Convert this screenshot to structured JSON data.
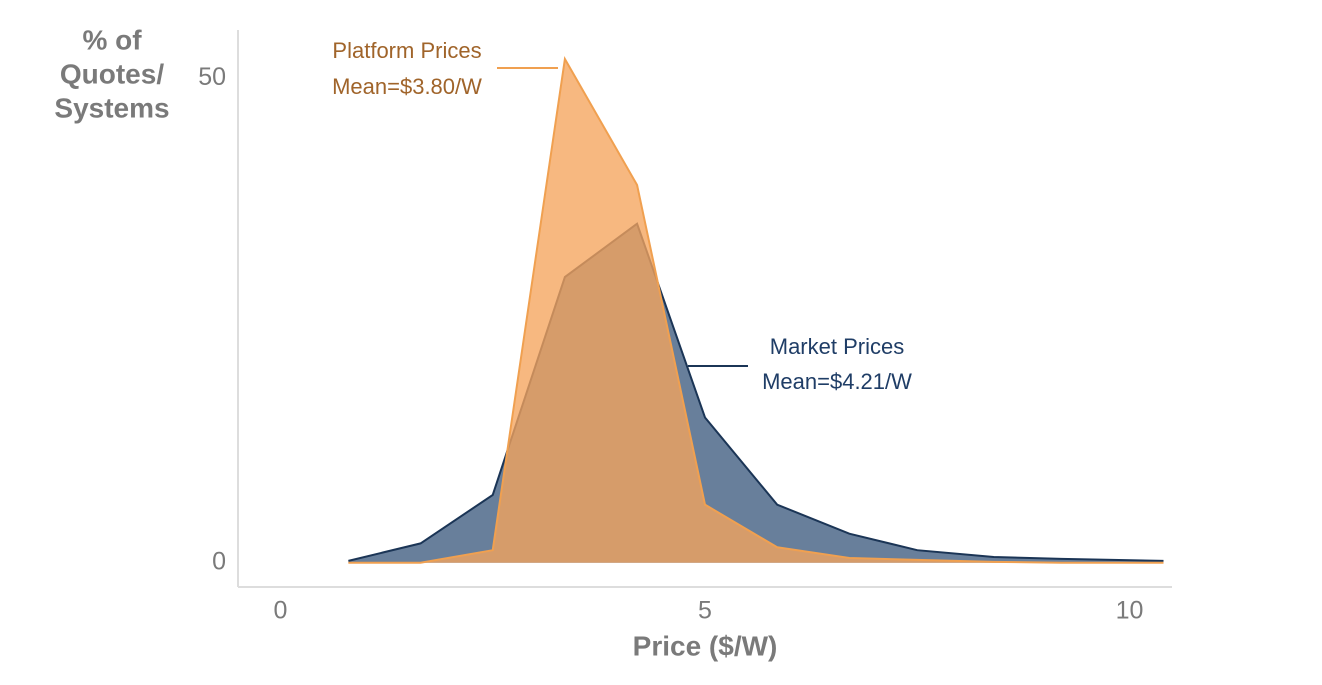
{
  "chart_data": {
    "type": "area",
    "y_label": [
      "% of",
      "Quotes/",
      "Systems"
    ],
    "x_label": "Price ($/W)",
    "x": [
      0.8,
      1.65,
      2.5,
      3.35,
      4.2,
      5.0,
      5.85,
      6.7,
      7.5,
      8.4,
      9.2,
      10.4
    ],
    "series": [
      {
        "name": "Market Prices",
        "mean_label": "Mean=$4.21/W",
        "color": "#2e4e74",
        "line_color": "#1b3556",
        "label_color": "#1f3d66",
        "values": [
          0.2,
          2,
          7,
          29.5,
          35,
          15,
          6,
          3,
          1.3,
          0.6,
          0.4,
          0.2
        ]
      },
      {
        "name": "Platform Prices",
        "mean_label": "Mean=$3.80/W",
        "color": "#f5a45c",
        "line_color": "#f0a050",
        "label_color": "#a0642a",
        "values": [
          0,
          0,
          1.3,
          52,
          39,
          6,
          1.6,
          0.5,
          0.3,
          0.1,
          0,
          0
        ]
      }
    ],
    "xlim": [
      -0.5,
      10.5
    ],
    "ylim": [
      -2.5,
      55
    ],
    "xticks": [
      0,
      5,
      10
    ],
    "yticks": [
      0,
      50
    ],
    "grid": false
  }
}
